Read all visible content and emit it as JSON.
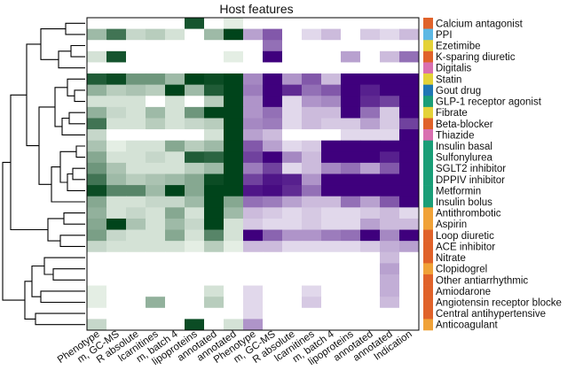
{
  "chart_data": {
    "type": "heatmap",
    "title": "Host features",
    "row_labels": [
      "Calcium antagonist",
      "PPI",
      "Ezetimibe",
      "K-sparing diuretic",
      "Digitalis",
      "Statin",
      "Gout drug",
      "GLP-1 receptor agonist",
      "Fibrate",
      "Beta-blocker",
      "Thiazide",
      "Insulin basal",
      "Sulfonylurea",
      "SGLT2 inhibitor",
      "DPPIV inhibitor",
      "Metformin",
      "Insulin bolus",
      "Antithrombotic",
      "Aspirin",
      "Loop diuretic",
      "ACE inhibitor",
      "Nitrate",
      "Clopidogrel",
      "Other antiarrhythmic",
      "Amiodarone",
      "Angiotensin receptor blocke",
      "Central antihypertensive",
      "Anticoagulant"
    ],
    "row_colors": [
      "#e0622a",
      "#5cb8e4",
      "#e4d238",
      "#e0622a",
      "#d96fb0",
      "#e4d238",
      "#1f77b4",
      "#1a9e77",
      "#e4d238",
      "#e0622a",
      "#d96fb0",
      "#1a9e77",
      "#1a9e77",
      "#1a9e77",
      "#1a9e77",
      "#1a9e77",
      "#1a9e77",
      "#f0a238",
      "#f0a238",
      "#e0622a",
      "#e0622a",
      "#e0622a",
      "#f0a238",
      "#e0622a",
      "#e0622a",
      "#e0622a",
      "#e0622a",
      "#f0a238"
    ],
    "col_labels": [
      "Phenotype",
      "m, GC-MS",
      "R absolute",
      "lcarnitines",
      "m, batch 4",
      "lipoproteins",
      "annotated",
      "annotated",
      "Phenotype",
      "m, GC-MS",
      "R absolute",
      "lcarnitines",
      "m, batch 4",
      "lipoproteins",
      "annotated",
      "annotated",
      "Indication"
    ],
    "col_groups": [
      "green",
      "green",
      "green",
      "green",
      "green",
      "green",
      "green",
      "green",
      "purple",
      "purple",
      "purple",
      "purple",
      "purple",
      "purple",
      "purple",
      "purple",
      "purple"
    ],
    "values": [
      [
        0,
        0,
        0,
        0,
        0,
        0.9,
        0,
        0.05,
        0,
        0,
        0,
        0,
        0,
        0,
        0,
        0,
        0
      ],
      [
        0.3,
        0.7,
        0.15,
        0.2,
        0.1,
        0,
        0.3,
        1.0,
        0.3,
        0.6,
        0,
        0.1,
        0.2,
        0,
        0.15,
        0.1,
        0.2
      ],
      [
        0,
        0,
        0,
        0,
        0,
        0,
        0,
        0,
        0,
        0.5,
        0,
        0,
        0,
        0,
        0,
        0,
        0
      ],
      [
        0.1,
        0.9,
        0,
        0,
        0,
        0,
        0,
        0.05,
        0,
        1.0,
        0,
        0,
        0,
        0.3,
        0,
        0.2,
        0.5
      ],
      [
        0,
        0,
        0,
        0,
        0,
        0,
        0,
        0,
        0,
        0,
        0,
        0,
        0,
        0,
        0,
        0,
        0
      ],
      [
        0.85,
        0.95,
        0.5,
        0.5,
        0.3,
        1.0,
        0.95,
        1.0,
        0.4,
        1.0,
        0.35,
        0.6,
        0.2,
        1.0,
        1.0,
        1.0,
        1.0
      ],
      [
        0.35,
        0.2,
        0.25,
        0.2,
        1.0,
        0.3,
        0.85,
        1.0,
        0.45,
        1.0,
        0.8,
        0.5,
        0.6,
        1.0,
        0.85,
        1.0,
        1.0
      ],
      [
        0.1,
        0.1,
        0.1,
        0,
        0.1,
        0,
        0.2,
        1.0,
        0.35,
        1.0,
        0.1,
        0.35,
        0.4,
        1.0,
        0.8,
        0.7,
        1.0
      ],
      [
        0.35,
        0.15,
        0.1,
        0.3,
        0.1,
        0.5,
        1.0,
        1.0,
        0.35,
        0.5,
        0.1,
        0.2,
        0.2,
        1.0,
        0.5,
        0.15,
        1.0
      ],
      [
        0.7,
        0.1,
        0.1,
        0.2,
        0.1,
        0.15,
        0.2,
        1.0,
        0.4,
        0.45,
        0.1,
        0.2,
        0.15,
        0.15,
        0.3,
        0.15,
        0.7
      ],
      [
        0.15,
        0,
        0,
        0,
        0,
        0,
        0.1,
        1.0,
        0.3,
        0.2,
        0,
        0,
        0,
        0.1,
        0.1,
        0.1,
        1.0
      ],
      [
        0.25,
        0.05,
        0.1,
        0.1,
        0.4,
        0.2,
        0.3,
        1.0,
        0.6,
        0.3,
        0.1,
        0.15,
        1.0,
        1.0,
        1.0,
        1.0,
        1.0
      ],
      [
        0.4,
        0.1,
        0.1,
        0.15,
        0.1,
        0.85,
        0.8,
        1.0,
        0.7,
        1.0,
        0.4,
        0.2,
        1.0,
        1.0,
        1.0,
        0.85,
        1.0
      ],
      [
        0.5,
        0.25,
        0.1,
        0.1,
        0.1,
        0.2,
        0.3,
        1.0,
        0.45,
        0.7,
        0.1,
        0.2,
        0.4,
        0.5,
        0.3,
        0.6,
        1.0
      ],
      [
        0.7,
        0.3,
        0.2,
        0.25,
        0.3,
        0.4,
        0.95,
        1.0,
        0.7,
        0.9,
        0.85,
        0.35,
        1.0,
        1.0,
        1.0,
        1.0,
        1.0
      ],
      [
        0.95,
        0.6,
        0.6,
        0.3,
        1.0,
        0.4,
        1.0,
        1.0,
        0.9,
        0.95,
        0.8,
        0.5,
        1.0,
        1.0,
        1.0,
        1.0,
        1.0
      ],
      [
        0.4,
        0.1,
        0.1,
        0.15,
        0.15,
        0.3,
        1.0,
        0.4,
        0.5,
        0.45,
        0.3,
        0.2,
        0.2,
        0.5,
        0.3,
        0.6,
        1.0
      ],
      [
        0.35,
        0.1,
        0.15,
        0.1,
        0.4,
        0.1,
        1.0,
        0.3,
        0.2,
        0.15,
        0.1,
        0.15,
        0.1,
        0.1,
        0.15,
        0.2,
        0.1
      ],
      [
        0.4,
        1.0,
        0.25,
        0.1,
        0.3,
        0.15,
        1.0,
        0.1,
        0.15,
        0.1,
        0.1,
        0.15,
        0.1,
        0.1,
        0.3,
        0.2,
        0.2
      ],
      [
        0.45,
        0.15,
        0.1,
        0.1,
        0.4,
        0.1,
        0.6,
        0.1,
        1.0,
        0.55,
        0.35,
        0.35,
        0.45,
        0.5,
        1.0,
        0.4,
        1.0
      ],
      [
        0.15,
        0.1,
        0.1,
        0.1,
        0.1,
        0.05,
        0.2,
        0.05,
        0.2,
        0.2,
        0.1,
        0.1,
        0.1,
        0.1,
        0.15,
        0.25,
        0.3
      ],
      [
        0,
        0,
        0,
        0,
        0,
        0,
        0,
        0,
        0,
        0,
        0,
        0,
        0,
        0,
        0,
        0.2,
        0
      ],
      [
        0,
        0,
        0,
        0,
        0,
        0,
        0,
        0,
        0,
        0,
        0,
        0,
        0,
        0,
        0,
        0.3,
        0
      ],
      [
        0,
        0,
        0,
        0,
        0,
        0,
        0,
        0,
        0,
        0,
        0,
        0,
        0,
        0,
        0,
        0.25,
        0
      ],
      [
        0.05,
        0,
        0,
        0,
        0,
        0,
        0.1,
        0,
        0.1,
        0,
        0,
        0.1,
        0,
        0,
        0,
        0.25,
        0
      ],
      [
        0.05,
        0,
        0,
        0.35,
        0,
        0,
        0.2,
        0,
        0.1,
        0,
        0,
        0.15,
        0,
        0,
        0,
        0.2,
        0
      ],
      [
        0,
        0,
        0,
        0,
        0,
        0,
        0,
        0,
        0.1,
        0,
        0,
        0,
        0,
        0,
        0,
        0,
        0
      ],
      [
        0.15,
        0,
        0,
        0,
        0,
        0.95,
        0,
        0.1,
        0.35,
        0,
        0,
        0,
        0,
        0,
        0,
        0,
        0
      ]
    ],
    "green_range": [
      "#f7fcf5",
      "#00441b"
    ],
    "purple_range": [
      "#fcfbfd",
      "#3f007d"
    ]
  }
}
